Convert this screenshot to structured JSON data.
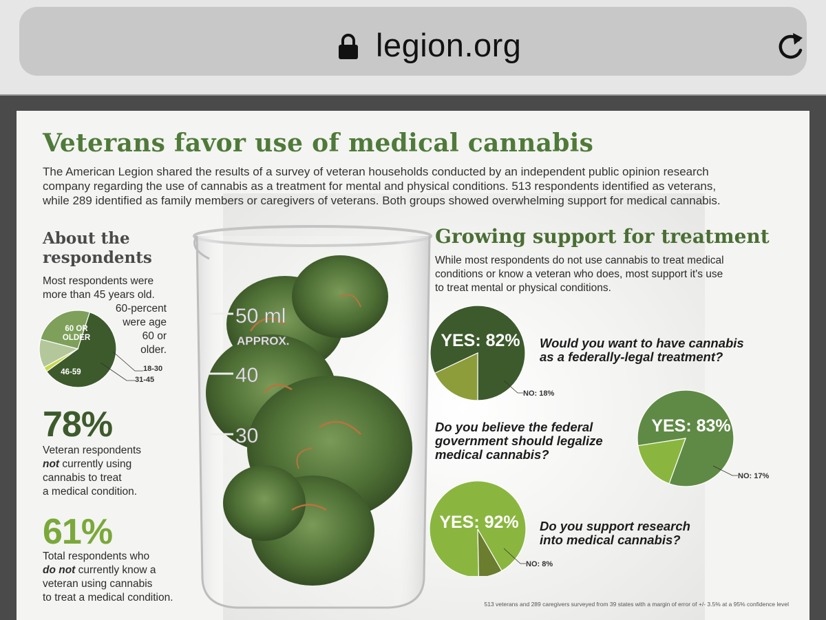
{
  "browser": {
    "url": "legion.org"
  },
  "infographic": {
    "title": "Veterans favor use of medical cannabis",
    "intro": [
      "The American Legion shared the results of a survey of veteran households conducted by an independent public opinion research",
      "company regarding the use of cannabis as a treatment for mental and physical conditions. 513 respondents identified as veterans,",
      "while 289 identified as family members or caregivers of veterans. Both groups showed overwhelming support for medical cannabis."
    ],
    "about": {
      "heading_line1": "About the",
      "heading_line2": "respondents",
      "desc_line1": "Most respondents were",
      "desc_line2": "more than 45 years old.",
      "side_lines": [
        "60-percent",
        "were age",
        "60 or",
        "older."
      ]
    },
    "stat1": {
      "value": "78%",
      "line1": "Veteran respondents",
      "line2_em": "not",
      "line2_rest": " currently using",
      "line3": "cannabis to treat",
      "line4": "a medical condition."
    },
    "stat2": {
      "value": "61%",
      "line1": "Total respondents who",
      "line2_em": "do not",
      "line2_rest": " currently know a",
      "line3": "veteran using cannabis",
      "line4": "to treat a medical condition."
    },
    "beaker_marks": [
      "50 ml",
      "APPROX.",
      "40",
      "30"
    ],
    "growing": {
      "heading": "Growing support for treatment",
      "desc": [
        "While most respondents do not use cannabis to treat medical",
        "conditions or know a veteran who does, most support it's use",
        "to treat mental or physical conditions."
      ],
      "q1_lines": [
        "Would you want to have cannabis",
        "as a federally-legal treatment?"
      ],
      "q2_lines": [
        "Do you believe the federal",
        "government should legalize",
        "medical cannabis?"
      ],
      "q3_lines": [
        "Do you support research",
        "into medical cannabis?"
      ]
    },
    "footnote": "513 veterans and 289 caregivers surveyed from 39 states with a margin of error of +/- 3.5% at a 95% confidence level"
  },
  "colors": {
    "dark_green": "#3d5a2c",
    "mid_green": "#5f8a45",
    "light_green": "#8ab63f",
    "olive": "#8c9d3a",
    "title_green": "#4f7a3a"
  },
  "icons": {
    "lock": "lock-icon",
    "reload": "reload-icon"
  },
  "chart_data": [
    {
      "type": "pie",
      "title": "",
      "categories": [
        "60 OR OLDER",
        "46-59",
        "31-45",
        "18-30"
      ],
      "values": [
        60,
        26,
        12,
        2
      ],
      "colors": [
        "#3d5a2c",
        "#7ea05a",
        "#b3c79a",
        "#c8d84a"
      ]
    },
    {
      "type": "pie",
      "title": "Would you want to have cannabis as a federally-legal treatment?",
      "categories": [
        "YES: 82%",
        "NO: 18%"
      ],
      "values": [
        82,
        18
      ],
      "colors": [
        "#3d5a2c",
        "#8c9d3a"
      ]
    },
    {
      "type": "pie",
      "title": "Do you believe the federal government should legalize medical cannabis?",
      "categories": [
        "YES: 83%",
        "NO: 17%"
      ],
      "values": [
        83,
        17
      ],
      "colors": [
        "#5f8a45",
        "#8ab63f"
      ]
    },
    {
      "type": "pie",
      "title": "Do you support research into medical cannabis?",
      "categories": [
        "YES: 92%",
        "NO: 8%"
      ],
      "values": [
        92,
        8
      ],
      "colors": [
        "#8ab63f",
        "#6b7d2e"
      ]
    }
  ]
}
